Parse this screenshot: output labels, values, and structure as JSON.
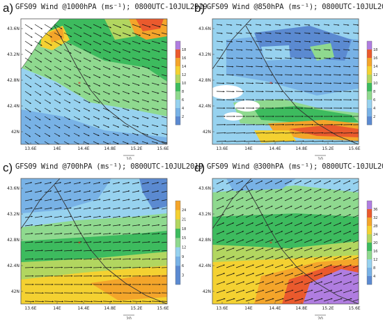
{
  "colors": {
    "levels": [
      "#5b8ad1",
      "#78b2e6",
      "#97d2ef",
      "#8fd98f",
      "#3dbb5e",
      "#b2d660",
      "#f4d131",
      "#f4a52a",
      "#ea5a2d",
      "#b07de0"
    ],
    "coast": "#333333",
    "arrow": "#111111",
    "frame": "#555555",
    "marker": "#e03020"
  },
  "x_ticks": [
    "13.6E",
    "14E",
    "14.4E",
    "14.8E",
    "15.2E",
    "15.6E"
  ],
  "y_ticks": [
    "43.6N",
    "43.2N",
    "42.8N",
    "42.4N",
    "42N"
  ],
  "panels": [
    {
      "letter": "a)",
      "title": "GFS09 Wind @1000hPA (ms⁻¹); 0800UTC-10JUL2019",
      "cb_labels": [
        "18",
        "16",
        "14",
        "12",
        "10",
        "8",
        "6",
        "4",
        "2"
      ],
      "ref_label": "10"
    },
    {
      "letter": "b)",
      "title": "GFS09 Wind @850hPA (ms⁻¹); 0800UTC-10JUL2019",
      "cb_labels": [
        "18",
        "16",
        "14",
        "12",
        "10",
        "8",
        "6",
        "4",
        "2"
      ],
      "ref_label": "10"
    },
    {
      "letter": "c)",
      "title": "GFS09 Wind @700hPA (ms⁻¹); 0800UTC-10JUL2019",
      "cb_labels": [
        "24",
        "21",
        "18",
        "15",
        "12",
        "9",
        "6",
        "3"
      ],
      "ref_label": "20"
    },
    {
      "letter": "d)",
      "title": "GFS09 Wind @300hPA (ms⁻¹); 0800UTC-10JUL2019",
      "cb_labels": [
        "36",
        "32",
        "28",
        "24",
        "20",
        "16",
        "12",
        "8",
        "4"
      ],
      "ref_label": "20"
    }
  ]
}
